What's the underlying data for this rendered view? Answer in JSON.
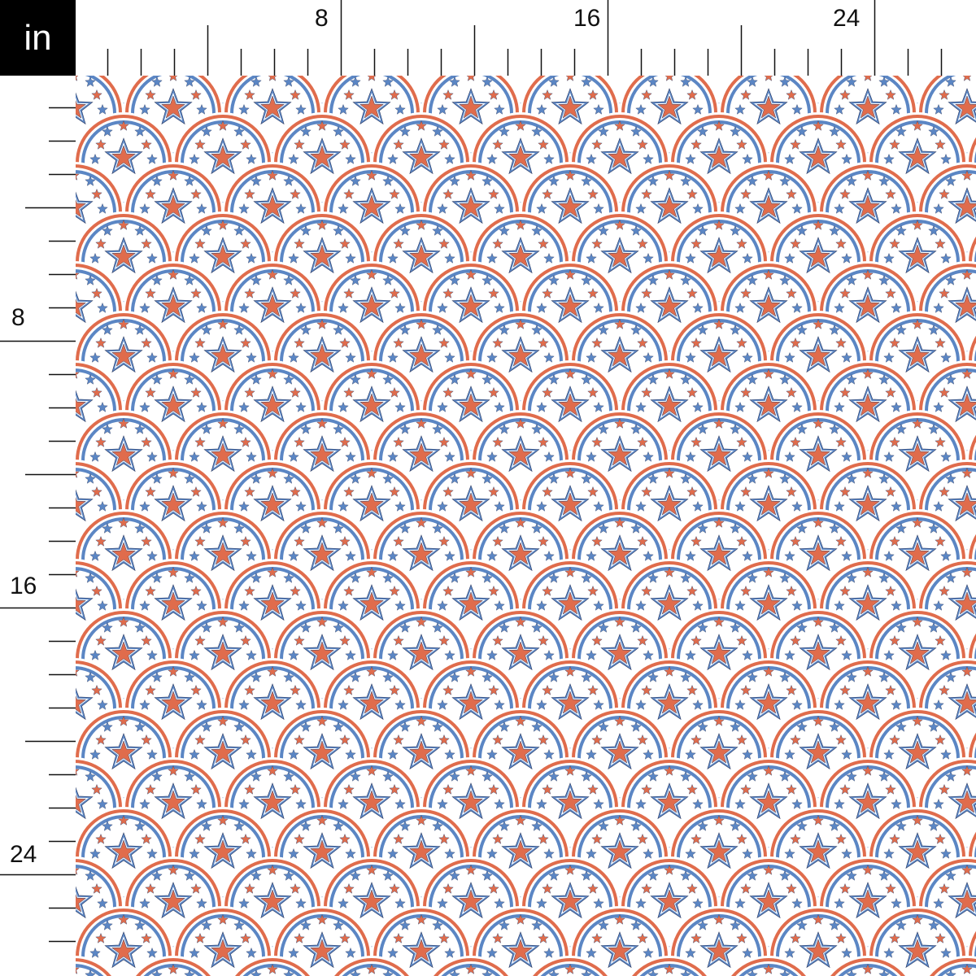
{
  "unit_label": "in",
  "ruler": {
    "unit": "inches",
    "labels": [
      "8",
      "16",
      "24"
    ],
    "major_every": 8,
    "mid_every": 4
  },
  "pattern": {
    "name": "star scallops",
    "colors": {
      "orange": "#e06c4c",
      "blue": "#5b86c4",
      "background": "#ffffff",
      "outline": "#2d3d66"
    }
  }
}
